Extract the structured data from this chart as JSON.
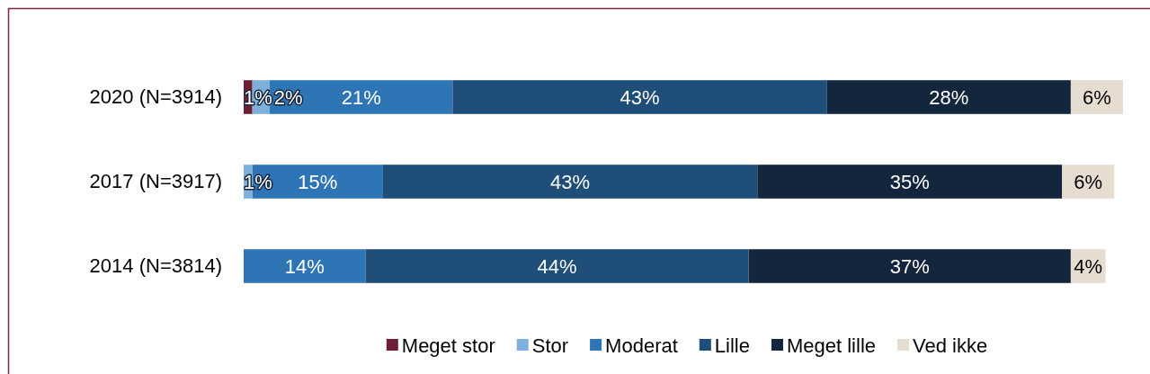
{
  "chart_data": {
    "type": "bar",
    "orientation": "horizontal",
    "stacked": true,
    "categories": [
      "2020 (N=3914)",
      "2017 (N=3917)",
      "2014 (N=3814)"
    ],
    "series": [
      {
        "name": "Meget stor",
        "color": "#6d1f37",
        "values": [
          1,
          null,
          null
        ],
        "value_labels": [
          "1%",
          null,
          null
        ]
      },
      {
        "name": "Stor",
        "color": "#7fb0dc",
        "values": [
          2,
          1,
          null
        ],
        "value_labels": [
          "2%",
          "1%",
          null
        ]
      },
      {
        "name": "Moderat",
        "color": "#2e75b6",
        "values": [
          21,
          15,
          14
        ],
        "value_labels": [
          "21%",
          "15%",
          "14%"
        ]
      },
      {
        "name": "Lille",
        "color": "#1f4e79",
        "values": [
          43,
          43,
          44
        ],
        "value_labels": [
          "43%",
          "43%",
          "44%"
        ]
      },
      {
        "name": "Meget lille",
        "color": "#14263d",
        "values": [
          28,
          35,
          37
        ],
        "value_labels": [
          "28%",
          "35%",
          "37%"
        ]
      },
      {
        "name": "Ved ikke",
        "color": "#e6ddd0",
        "values": [
          6,
          6,
          4
        ],
        "value_labels": [
          "6%",
          "6%",
          "4%"
        ]
      }
    ],
    "tick_labels": "y",
    "legend": "bottom"
  }
}
